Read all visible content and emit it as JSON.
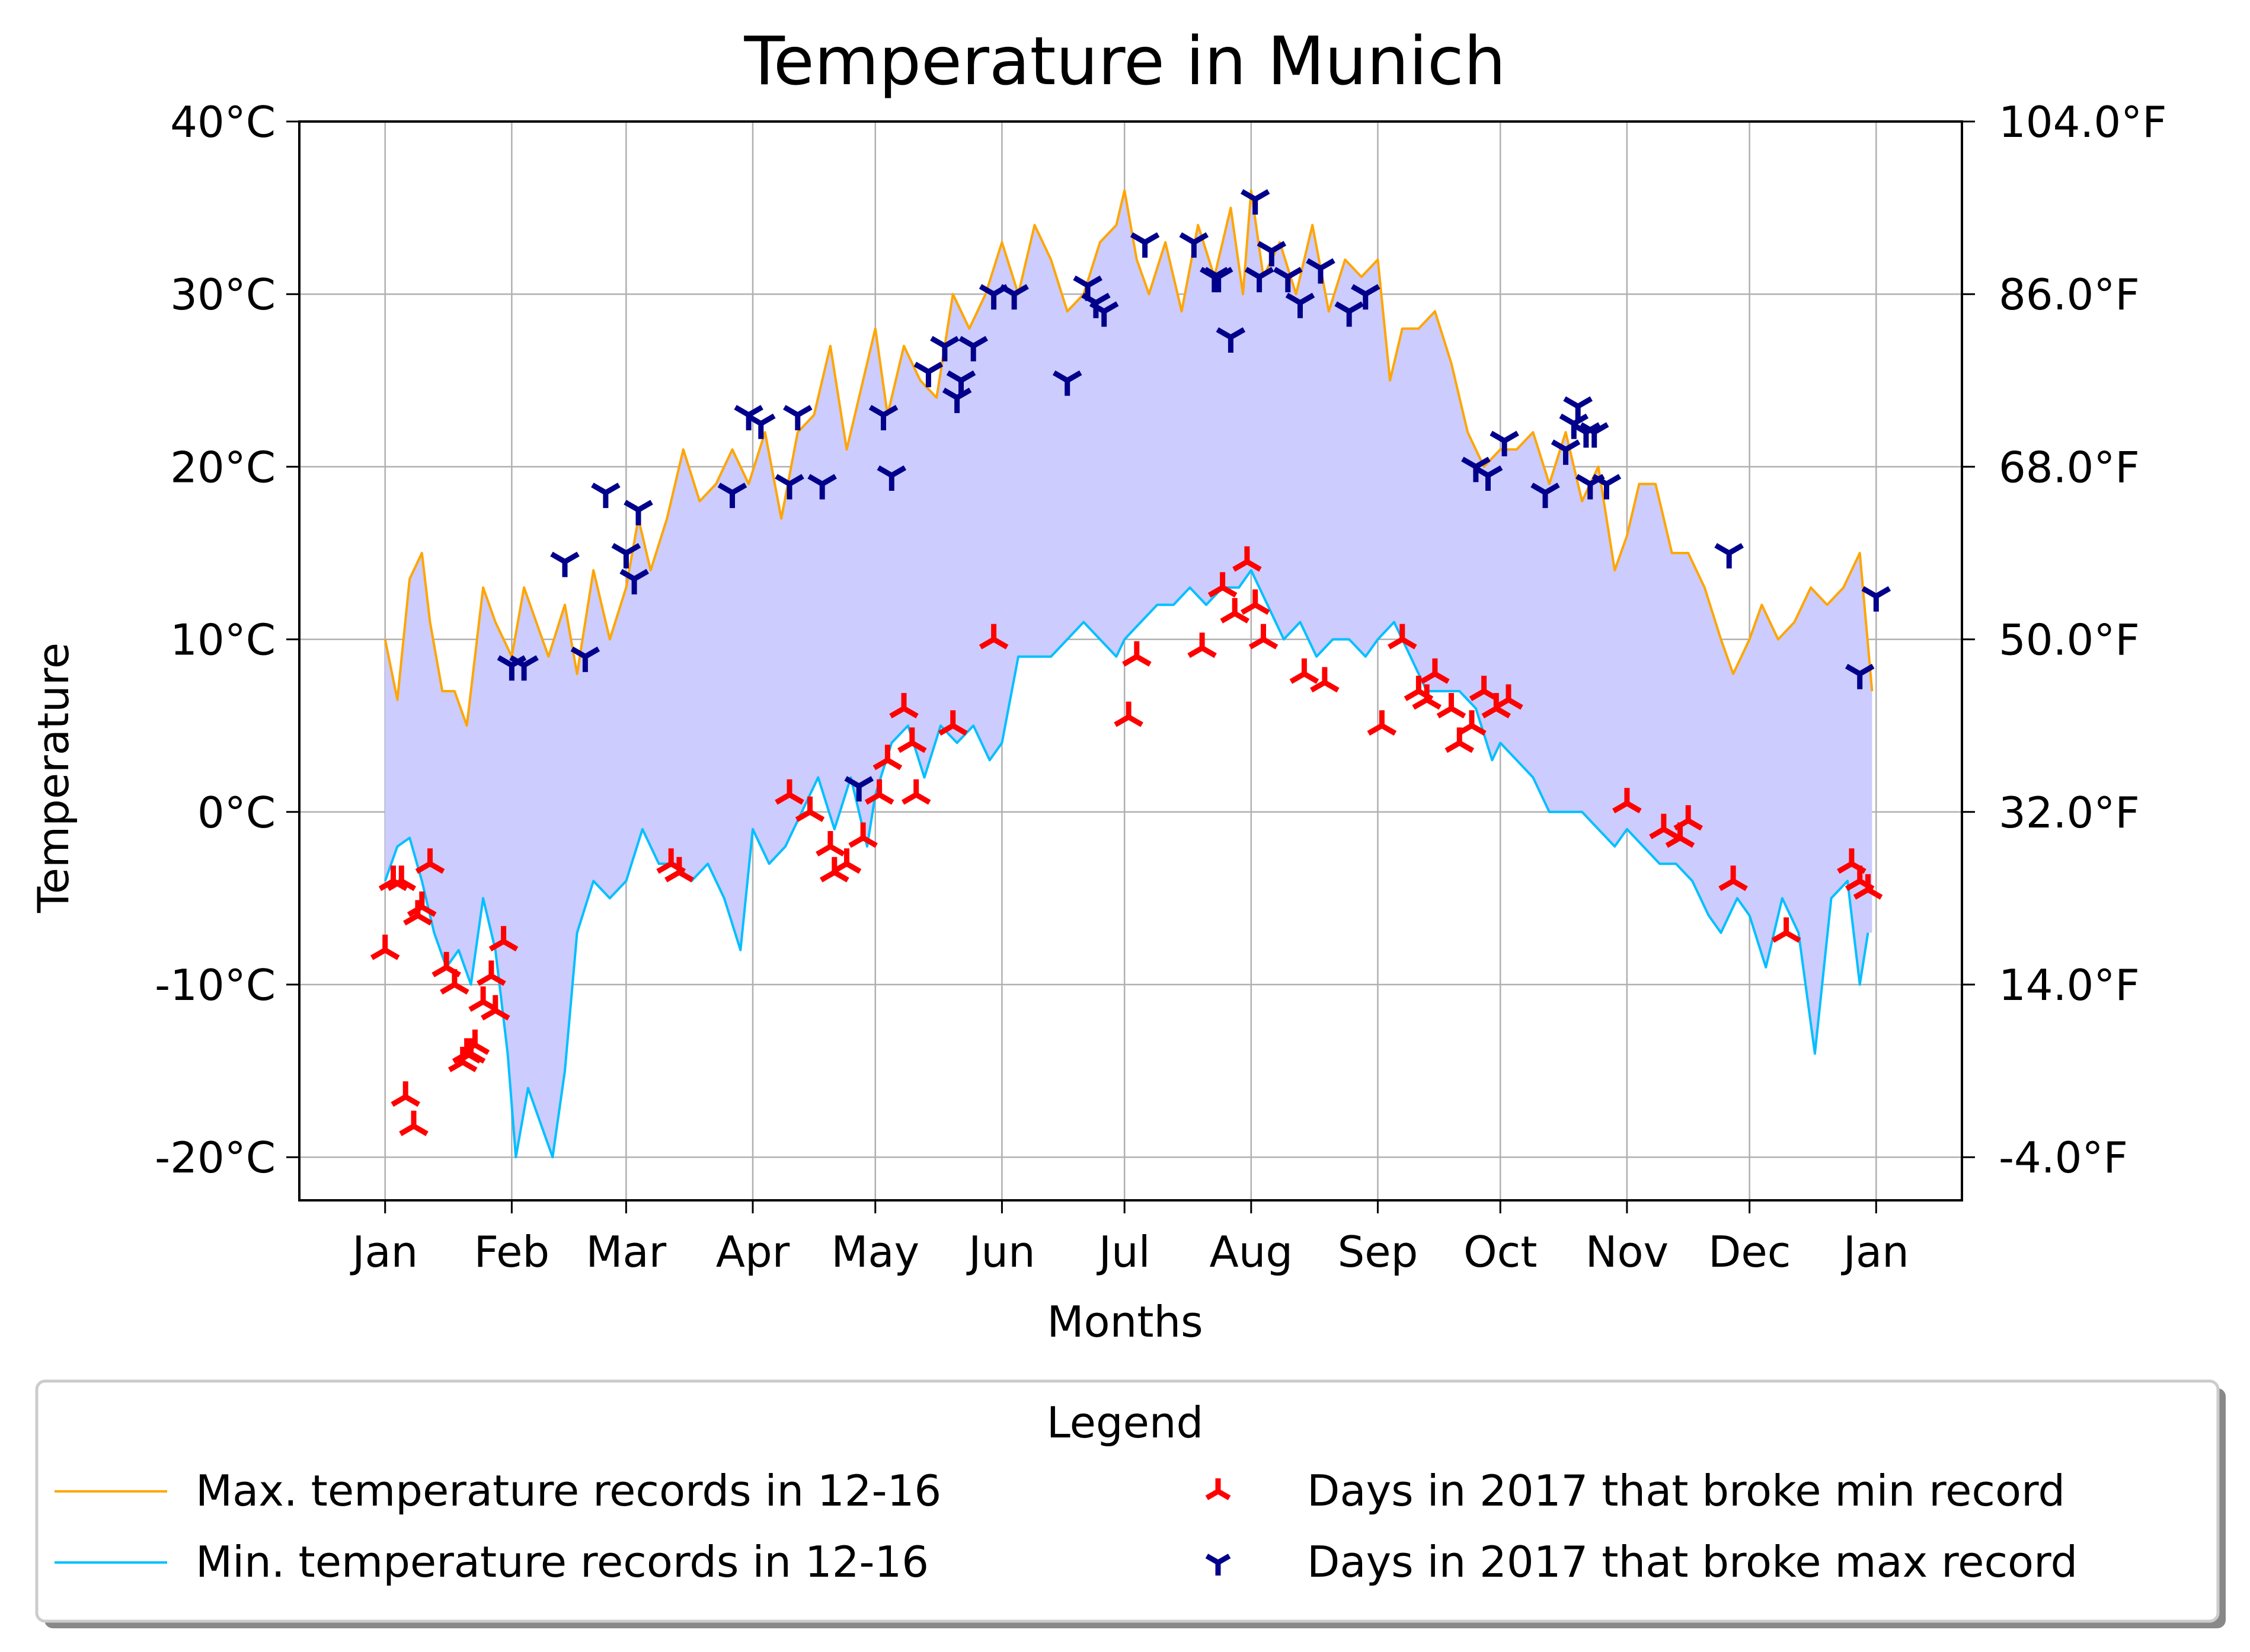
{
  "chart_data": {
    "type": "line",
    "title": "Temperature in Munich",
    "xlabel": "Months",
    "ylabel": "Temperature",
    "ylim": [
      -22.5,
      40
    ],
    "y_ticks": [
      {
        "value": -20,
        "label": "-20$^\\circ$C"
      },
      {
        "value": -10,
        "label": "-10$^\\circ$C"
      },
      {
        "value": 0,
        "label": "0$^\\circ$C"
      },
      {
        "value": 10,
        "label": "10$^\\circ$C"
      },
      {
        "value": 20,
        "label": "20$^\\circ$C"
      },
      {
        "value": 30,
        "label": "30$^\\circ$C"
      },
      {
        "value": 40,
        "label": "40$^\\circ$C"
      }
    ],
    "y_ticks_display": [
      "-20°C",
      "-10°C",
      "0°C",
      "10°C",
      "20°C",
      "30°C",
      "40°C"
    ],
    "y2_ticks": [
      {
        "value": -20,
        "label": "-4.0°F"
      },
      {
        "value": -10,
        "label": "14.0°F"
      },
      {
        "value": 0,
        "label": "32.0°F"
      },
      {
        "value": 10,
        "label": "50.0°F"
      },
      {
        "value": 20,
        "label": "68.0°F"
      },
      {
        "value": 30,
        "label": "86.0°F"
      },
      {
        "value": 40,
        "label": "104.0°F"
      }
    ],
    "x_ticks": [
      {
        "day": 1,
        "label": "Jan"
      },
      {
        "day": 32,
        "label": "Feb"
      },
      {
        "day": 60,
        "label": "Mar"
      },
      {
        "day": 91,
        "label": "Apr"
      },
      {
        "day": 121,
        "label": "May"
      },
      {
        "day": 152,
        "label": "Jun"
      },
      {
        "day": 182,
        "label": "Jul"
      },
      {
        "day": 213,
        "label": "Aug"
      },
      {
        "day": 244,
        "label": "Sep"
      },
      {
        "day": 274,
        "label": "Oct"
      },
      {
        "day": 305,
        "label": "Nov"
      },
      {
        "day": 335,
        "label": "Dec"
      },
      {
        "day": 366,
        "label": "Jan"
      }
    ],
    "xlim": [
      -20,
      387
    ],
    "grid": true,
    "legend": {
      "title": "Legend",
      "placement": "below",
      "entries": [
        {
          "label": "Max. temperature records in 12-16",
          "kind": "line",
          "color": "#ffa500"
        },
        {
          "label": "Min. temperature records in 12-16",
          "kind": "line",
          "color": "#00bfff"
        },
        {
          "label": "Days in 2017 that broke min record",
          "kind": "marker",
          "color": "#ff0000"
        },
        {
          "label": "Days in 2017 that broke max record",
          "kind": "marker",
          "color": "#00008b"
        }
      ]
    },
    "series": [
      {
        "name": "Max. temperature records in 12-16",
        "color": "#ffa500",
        "x": [
          1,
          4,
          7,
          10,
          12,
          15,
          18,
          21,
          25,
          28,
          32,
          35,
          38,
          41,
          45,
          48,
          52,
          56,
          60,
          63,
          66,
          70,
          74,
          78,
          82,
          86,
          90,
          94,
          98,
          102,
          106,
          110,
          114,
          118,
          121,
          124,
          128,
          132,
          136,
          140,
          144,
          148,
          152,
          156,
          160,
          164,
          168,
          172,
          176,
          180,
          182,
          185,
          188,
          192,
          196,
          200,
          204,
          208,
          211,
          213,
          216,
          220,
          224,
          228,
          232,
          236,
          240,
          244,
          247,
          250,
          254,
          258,
          262,
          266,
          270,
          274,
          278,
          282,
          286,
          290,
          294,
          298,
          302,
          305,
          308,
          312,
          316,
          320,
          324,
          328,
          331,
          335,
          338,
          342,
          346,
          350,
          354,
          358,
          362,
          365
        ],
        "values": [
          10,
          6.5,
          13.5,
          15,
          11,
          7,
          7,
          5,
          13,
          11,
          9,
          13,
          11,
          9,
          12,
          8,
          14,
          10,
          13,
          17,
          14,
          17,
          21,
          18,
          19,
          21,
          19,
          22,
          17,
          22,
          23,
          27,
          21,
          25,
          28,
          23,
          27,
          25,
          24,
          30,
          28,
          30,
          33,
          30,
          34,
          32,
          29,
          30,
          33,
          34,
          36,
          32,
          30,
          33,
          29,
          34,
          31,
          35,
          30,
          36,
          31,
          33,
          30,
          34,
          29,
          32,
          31,
          32,
          25,
          28,
          28,
          29,
          26,
          22,
          20,
          21,
          21,
          22,
          19,
          22,
          18,
          20,
          14,
          16,
          19,
          19,
          15,
          15,
          13,
          10,
          8,
          10,
          12,
          10,
          11,
          13,
          12,
          13,
          15,
          7
        ]
      },
      {
        "name": "Min. temperature records in 12-16",
        "color": "#00bfff",
        "x": [
          1,
          4,
          7,
          10,
          13,
          16,
          19,
          22,
          25,
          28,
          31,
          33,
          36,
          39,
          42,
          45,
          48,
          52,
          56,
          60,
          64,
          68,
          72,
          76,
          80,
          84,
          88,
          91,
          95,
          99,
          103,
          107,
          111,
          115,
          119,
          121,
          125,
          129,
          133,
          137,
          141,
          145,
          149,
          152,
          156,
          160,
          164,
          168,
          172,
          176,
          180,
          182,
          186,
          190,
          194,
          198,
          202,
          206,
          210,
          213,
          217,
          221,
          225,
          229,
          233,
          237,
          241,
          244,
          248,
          252,
          256,
          260,
          264,
          268,
          272,
          274,
          278,
          282,
          286,
          290,
          294,
          298,
          302,
          305,
          309,
          313,
          317,
          321,
          325,
          328,
          332,
          335,
          339,
          343,
          347,
          351,
          355,
          359,
          362,
          364
        ],
        "values": [
          -4,
          -2,
          -1.5,
          -4,
          -7,
          -9,
          -8,
          -10,
          -5,
          -8,
          -14,
          -20,
          -16,
          -18,
          -20,
          -15,
          -7,
          -4,
          -5,
          -4,
          -1,
          -3,
          -3,
          -4,
          -3,
          -5,
          -8,
          -1,
          -3,
          -2,
          0,
          2,
          -1,
          2,
          -2,
          1,
          4,
          5,
          2,
          5,
          4,
          5,
          3,
          4,
          9,
          9,
          9,
          10,
          11,
          10,
          9,
          10,
          11,
          12,
          12,
          13,
          12,
          13,
          13,
          14,
          12,
          10,
          11,
          9,
          10,
          10,
          9,
          10,
          11,
          9,
          7,
          7,
          7,
          6,
          3,
          4,
          3,
          2,
          0,
          0,
          0,
          -1,
          -2,
          -1,
          -2,
          -3,
          -3,
          -4,
          -6,
          -7,
          -5,
          -6,
          -9,
          -5,
          -7,
          -14,
          -5,
          -4,
          -10,
          -7
        ]
      },
      {
        "name": "Days in 2017 that broke min record",
        "color": "#ff0000",
        "x": [
          1,
          3,
          5,
          6,
          8,
          9,
          10,
          12,
          16,
          18,
          20,
          21,
          22,
          23,
          25,
          27,
          28,
          30,
          71,
          73,
          100,
          105,
          110,
          111,
          114,
          118,
          122,
          124,
          128,
          130,
          131,
          140,
          150,
          183,
          185,
          201,
          206,
          209,
          212,
          214,
          216,
          226,
          231,
          245,
          250,
          254,
          256,
          258,
          262,
          264,
          267,
          270,
          273,
          276,
          305,
          314,
          318,
          320,
          331,
          344,
          360,
          362,
          364
        ],
        "values": [
          -8,
          -4,
          -4,
          -16.5,
          -18.2,
          -6,
          -5.5,
          -3,
          -9,
          -10,
          -14.5,
          -14,
          -14,
          -13.5,
          -11,
          -9.5,
          -11.5,
          -7.5,
          -3,
          -3.5,
          1,
          0,
          -2,
          -3.5,
          -3,
          -1.5,
          1,
          3,
          6,
          4,
          1,
          5,
          10,
          5.5,
          9,
          9.5,
          13,
          11.5,
          14.5,
          12,
          10,
          8,
          7.5,
          5,
          10,
          7,
          6.5,
          8,
          6,
          4,
          5,
          7,
          6,
          6.5,
          0.5,
          -1,
          -1.5,
          -0.5,
          -4,
          -7,
          -3,
          -4,
          -4.5
        ]
      },
      {
        "name": "Days in 2017 that broke max record",
        "color": "#00008b",
        "x": [
          32,
          35,
          45,
          50,
          55,
          60,
          62,
          63,
          86,
          90,
          93,
          100,
          102,
          108,
          117,
          123,
          125,
          134,
          138,
          141,
          142,
          145,
          150,
          155,
          168,
          173,
          175,
          177,
          187,
          199,
          204,
          205,
          208,
          214,
          215,
          218,
          222,
          225,
          230,
          237,
          241,
          268,
          271,
          275,
          285,
          290,
          292,
          293,
          295,
          296,
          297,
          300,
          330,
          362,
          366
        ],
        "values": [
          8.5,
          8.5,
          14.5,
          9,
          18.5,
          15,
          13.5,
          17.5,
          18.5,
          23,
          22.5,
          19,
          23,
          19,
          1.5,
          23,
          19.5,
          25.5,
          27,
          24,
          25,
          27,
          30,
          30,
          25,
          30.5,
          29.5,
          29,
          33,
          33,
          31,
          31,
          27.5,
          35.5,
          31,
          32.5,
          31,
          29.5,
          31.5,
          29,
          30,
          20,
          19.5,
          21.5,
          18.5,
          21,
          22.5,
          23.5,
          22,
          19,
          22,
          19,
          15,
          8,
          12.5
        ]
      }
    ]
  }
}
